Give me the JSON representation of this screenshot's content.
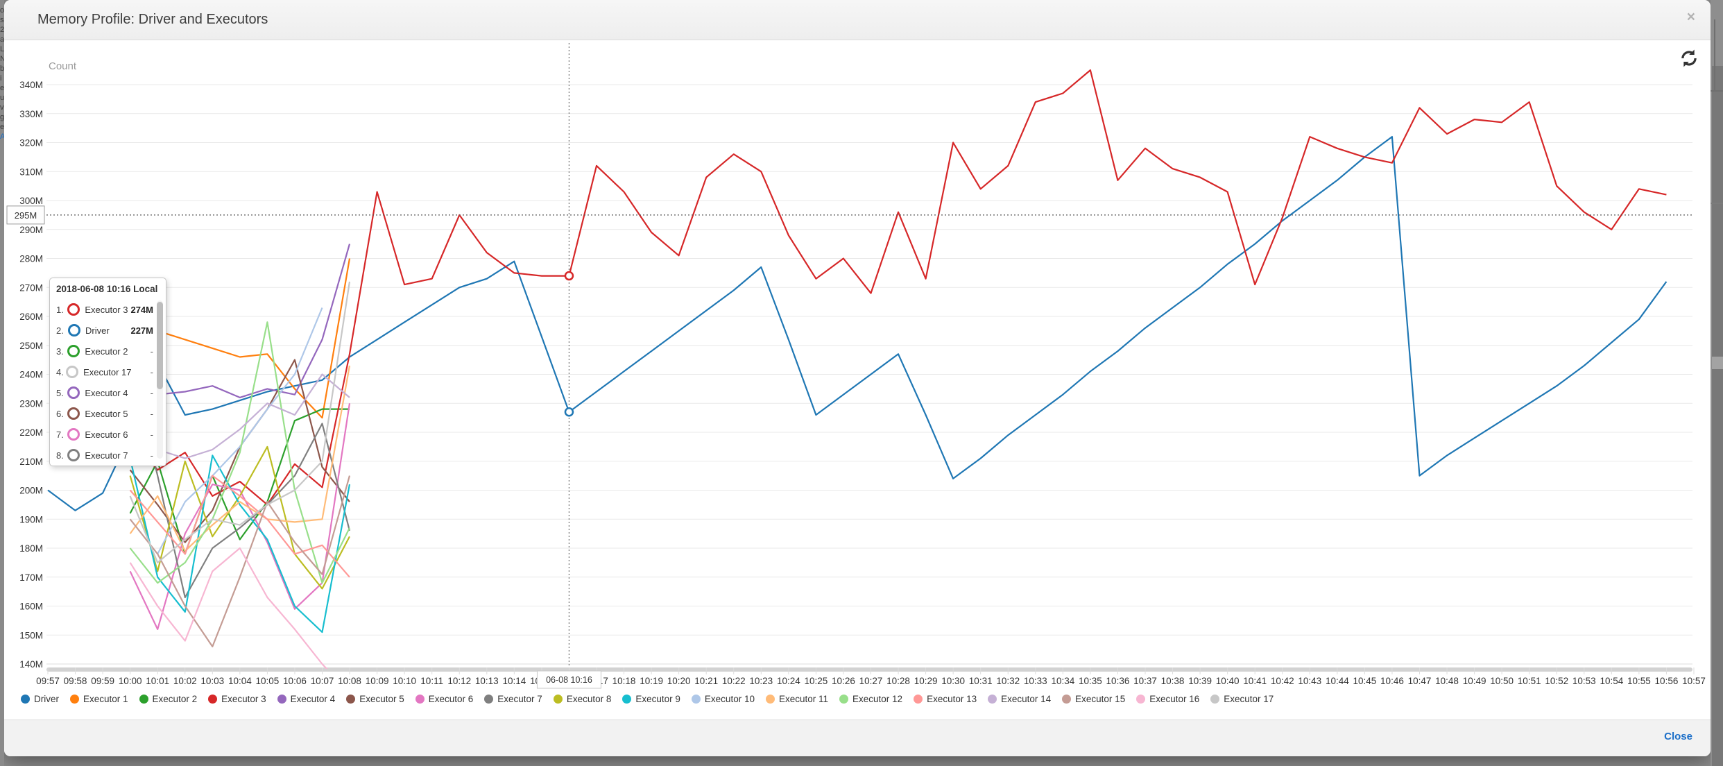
{
  "backdrop": {
    "left_edge_chars": [
      "o",
      "s",
      "2",
      "a",
      "L",
      "N",
      "b",
      "i",
      "e",
      "u",
      "v",
      "g",
      "e",
      "A"
    ]
  },
  "modal": {
    "title": "Memory Profile: Driver and Executors",
    "close_icon": "×",
    "footer": {
      "close_label": "Close"
    }
  },
  "chart": {
    "count_label": "Count",
    "cursor": {
      "y_label": "295M",
      "x_label": "06-08 10:16",
      "time": "10:16",
      "value": 295,
      "marked_points": [
        {
          "series": "Executor 3",
          "value": 274
        },
        {
          "series": "Driver",
          "value": 227
        }
      ]
    },
    "tooltip": {
      "title": "2018-06-08 10:16 Local",
      "rows": [
        {
          "rank": "1.",
          "name": "Executor 3",
          "color": "#d62728",
          "value": "274M"
        },
        {
          "rank": "2.",
          "name": "Driver",
          "color": "#1f77b4",
          "value": "227M"
        },
        {
          "rank": "3.",
          "name": "Executor 2",
          "color": "#2ca02c",
          "value": "-"
        },
        {
          "rank": "4.",
          "name": "Executor 17",
          "color": "#c7c7c7",
          "value": "-"
        },
        {
          "rank": "5.",
          "name": "Executor 4",
          "color": "#9467bd",
          "value": "-"
        },
        {
          "rank": "6.",
          "name": "Executor 5",
          "color": "#8c564b",
          "value": "-"
        },
        {
          "rank": "7.",
          "name": "Executor 6",
          "color": "#e377c2",
          "value": "-"
        },
        {
          "rank": "8.",
          "name": "Executor 7",
          "color": "#7f7f7f",
          "value": "-"
        }
      ]
    }
  },
  "chart_data": {
    "type": "line",
    "title": "Memory Profile: Driver and Executors",
    "ylabel": "Count",
    "unit": "M",
    "ylim": [
      140,
      340
    ],
    "y_ticks": [
      "340M",
      "330M",
      "320M",
      "310M",
      "300M",
      "290M",
      "280M",
      "270M",
      "260M",
      "250M",
      "240M",
      "230M",
      "220M",
      "210M",
      "200M",
      "190M",
      "180M",
      "170M",
      "160M",
      "150M",
      "140M"
    ],
    "x_categories": [
      "09:57",
      "09:58",
      "09:59",
      "10:00",
      "10:01",
      "10:02",
      "10:03",
      "10:04",
      "10:05",
      "10:06",
      "10:07",
      "10:08",
      "10:09",
      "10:10",
      "10:11",
      "10:12",
      "10:13",
      "10:14",
      "10:15",
      "10:16",
      "10:17",
      "10:18",
      "10:19",
      "10:20",
      "10:21",
      "10:22",
      "10:23",
      "10:24",
      "10:25",
      "10:26",
      "10:27",
      "10:28",
      "10:29",
      "10:30",
      "10:31",
      "10:32",
      "10:33",
      "10:34",
      "10:35",
      "10:36",
      "10:37",
      "10:38",
      "10:39",
      "10:40",
      "10:41",
      "10:42",
      "10:43",
      "10:44",
      "10:45",
      "10:46",
      "10:47",
      "10:48",
      "10:49",
      "10:50",
      "10:51",
      "10:52",
      "10:53",
      "10:54",
      "10:55",
      "10:56",
      "10:57"
    ],
    "grid": true,
    "legend_position": "bottom",
    "series": [
      {
        "name": "Driver",
        "color": "#1f77b4",
        "start": "09:57",
        "values": [
          200,
          193,
          199,
          219,
          244,
          226,
          228,
          231,
          234,
          236,
          238,
          246,
          252,
          258,
          264,
          270,
          273,
          279,
          253,
          227,
          234,
          241,
          248,
          255,
          262,
          269,
          277,
          252,
          226,
          233,
          240,
          247,
          226,
          204,
          211,
          219,
          226,
          233,
          241,
          248,
          256,
          263,
          270,
          278,
          285,
          293,
          300,
          307,
          315,
          322,
          205,
          212,
          218,
          224,
          230,
          236,
          243,
          251,
          259,
          272
        ]
      },
      {
        "name": "Executor 1",
        "color": "#ff7f0e",
        "start": "10:00",
        "values": [
          217,
          255,
          252,
          249,
          246,
          247,
          235,
          225,
          280
        ]
      },
      {
        "name": "Executor 2",
        "color": "#2ca02c",
        "start": "10:00",
        "values": [
          192,
          210,
          178,
          205,
          183,
          196,
          224,
          228,
          228
        ]
      },
      {
        "name": "Executor 3",
        "color": "#d62728",
        "start": "10:00",
        "values": [
          218,
          207,
          213,
          198,
          203,
          195,
          209,
          201,
          247,
          303,
          271,
          273,
          295,
          282,
          275,
          274,
          274,
          312,
          303,
          289,
          281,
          308,
          316,
          310,
          288,
          273,
          280,
          268,
          296,
          273,
          320,
          304,
          312,
          334,
          337,
          345,
          307,
          318,
          311,
          308,
          303,
          271,
          294,
          322,
          318,
          315,
          313,
          332,
          323,
          328,
          327,
          334,
          305,
          296,
          290,
          304,
          302
        ]
      },
      {
        "name": "Executor 4",
        "color": "#9467bd",
        "start": "10:00",
        "values": [
          222,
          233,
          234,
          236,
          232,
          235,
          233,
          252,
          285
        ]
      },
      {
        "name": "Executor 5",
        "color": "#8c564b",
        "start": "10:00",
        "values": [
          207,
          195,
          182,
          193,
          215,
          228,
          245,
          208,
          196
        ]
      },
      {
        "name": "Executor 6",
        "color": "#e377c2",
        "start": "10:00",
        "values": [
          172,
          152,
          185,
          202,
          200,
          182,
          159,
          168,
          230
        ]
      },
      {
        "name": "Executor 7",
        "color": "#7f7f7f",
        "start": "10:00",
        "values": [
          245,
          205,
          163,
          180,
          187,
          195,
          205,
          223,
          186
        ]
      },
      {
        "name": "Executor 8",
        "color": "#bcbd22",
        "start": "10:00",
        "values": [
          205,
          172,
          210,
          184,
          198,
          215,
          178,
          166,
          184
        ]
      },
      {
        "name": "Executor 9",
        "color": "#17becf",
        "start": "10:00",
        "values": [
          211,
          170,
          158,
          212,
          195,
          183,
          160,
          151,
          202
        ]
      },
      {
        "name": "Executor 10",
        "color": "#aec7e8",
        "start": "10:01",
        "values": [
          178,
          196,
          205,
          215,
          228,
          240,
          263
        ]
      },
      {
        "name": "Executor 11",
        "color": "#ffbb78",
        "start": "10:00",
        "values": [
          185,
          198,
          179,
          188,
          196,
          190,
          189,
          190,
          243
        ]
      },
      {
        "name": "Executor 12",
        "color": "#98df8a",
        "start": "10:00",
        "values": [
          180,
          168,
          175,
          190,
          213,
          258,
          200,
          168,
          187
        ]
      },
      {
        "name": "Executor 13",
        "color": "#ff9896",
        "start": "10:00",
        "values": [
          200,
          189,
          178,
          205,
          198,
          190,
          178,
          181,
          170
        ]
      },
      {
        "name": "Executor 14",
        "color": "#c5b0d5",
        "start": "10:00",
        "values": [
          213,
          214,
          211,
          214,
          221,
          230,
          226,
          240,
          232
        ]
      },
      {
        "name": "Executor 15",
        "color": "#c49c94",
        "start": "10:00",
        "values": [
          190,
          178,
          160,
          146,
          170,
          196,
          182,
          171,
          205
        ]
      },
      {
        "name": "Executor 16",
        "color": "#f7b6d2",
        "start": "10:00",
        "values": [
          175,
          160,
          148,
          172,
          180,
          163,
          152,
          140,
          130
        ]
      },
      {
        "name": "Executor 17",
        "color": "#c7c7c7",
        "start": "10:00",
        "values": [
          198,
          175,
          183,
          190,
          188,
          195,
          200,
          210,
          272
        ]
      }
    ]
  }
}
